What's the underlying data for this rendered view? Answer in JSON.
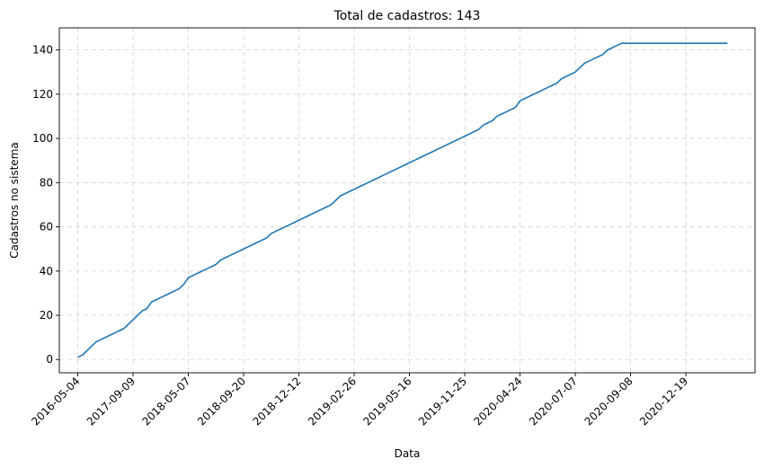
{
  "chart_data": {
    "type": "line",
    "title": "Total de cadastros: 143",
    "xlabel": "Data",
    "ylabel": "Cadastros no sistema",
    "ylim": [
      -6,
      150
    ],
    "yticks": [
      0,
      20,
      40,
      60,
      80,
      100,
      120,
      140
    ],
    "xlim": [
      -4,
      147
    ],
    "xticks": [
      {
        "pos": 0,
        "label": "2016-05-04"
      },
      {
        "pos": 12,
        "label": "2017-09-09"
      },
      {
        "pos": 24,
        "label": "2018-05-07"
      },
      {
        "pos": 36,
        "label": "2018-09-20"
      },
      {
        "pos": 48,
        "label": "2018-12-12"
      },
      {
        "pos": 60,
        "label": "2019-02-26"
      },
      {
        "pos": 72,
        "label": "2019-05-16"
      },
      {
        "pos": 84,
        "label": "2019-11-25"
      },
      {
        "pos": 96,
        "label": "2020-04-24"
      },
      {
        "pos": 108,
        "label": "2020-07-07"
      },
      {
        "pos": 120,
        "label": "2020-09-08"
      },
      {
        "pos": 132,
        "label": "2020-12-19"
      }
    ],
    "grid": true,
    "series": [
      {
        "color": "#1f77b4",
        "x": [
          0,
          1,
          2,
          3,
          4,
          5,
          6,
          7,
          8,
          9,
          10,
          11,
          12,
          13,
          14,
          15,
          16,
          17,
          18,
          19,
          20,
          21,
          22,
          23,
          24,
          25,
          26,
          27,
          28,
          29,
          30,
          31,
          32,
          33,
          34,
          35,
          36,
          37,
          38,
          39,
          40,
          41,
          42,
          43,
          44,
          45,
          46,
          47,
          48,
          49,
          50,
          51,
          52,
          53,
          54,
          55,
          56,
          57,
          58,
          59,
          60,
          61,
          62,
          63,
          64,
          65,
          66,
          67,
          68,
          69,
          70,
          71,
          72,
          73,
          74,
          75,
          76,
          77,
          78,
          79,
          80,
          81,
          82,
          83,
          84,
          85,
          86,
          87,
          88,
          89,
          90,
          91,
          92,
          93,
          94,
          95,
          96,
          97,
          98,
          99,
          100,
          101,
          102,
          103,
          104,
          105,
          106,
          107,
          108,
          109,
          110,
          111,
          112,
          113,
          114,
          115,
          116,
          117,
          118,
          119,
          120,
          121,
          122,
          123,
          124,
          125,
          126,
          127,
          128,
          129,
          130,
          131,
          132,
          133,
          134,
          135,
          136,
          137,
          138,
          139,
          140,
          141
        ],
        "values": [
          1,
          2,
          4,
          6,
          8,
          9,
          10,
          11,
          12,
          13,
          14,
          16,
          18,
          20,
          22,
          23,
          26,
          27,
          28,
          29,
          30,
          31,
          32,
          34,
          37,
          38,
          39,
          40,
          41,
          42,
          43,
          45,
          46,
          47,
          48,
          49,
          50,
          51,
          52,
          53,
          54,
          55,
          57,
          58,
          59,
          60,
          61,
          62,
          63,
          64,
          65,
          66,
          67,
          68,
          69,
          70,
          72,
          74,
          75,
          76,
          77,
          78,
          79,
          80,
          81,
          82,
          83,
          84,
          85,
          86,
          87,
          88,
          89,
          90,
          91,
          92,
          93,
          94,
          95,
          96,
          97,
          98,
          99,
          100,
          101,
          102,
          103,
          104,
          106,
          107,
          108,
          110,
          111,
          112,
          113,
          114,
          117,
          118,
          119,
          120,
          121,
          122,
          123,
          124,
          125,
          127,
          128,
          129,
          130,
          132,
          134,
          135,
          136,
          137,
          138,
          140,
          141,
          142,
          143,
          143,
          143,
          143,
          143,
          143,
          143,
          143,
          143,
          143,
          143,
          143,
          143,
          143,
          143,
          143,
          143,
          143,
          143,
          143,
          143,
          143,
          143,
          143
        ]
      }
    ]
  }
}
